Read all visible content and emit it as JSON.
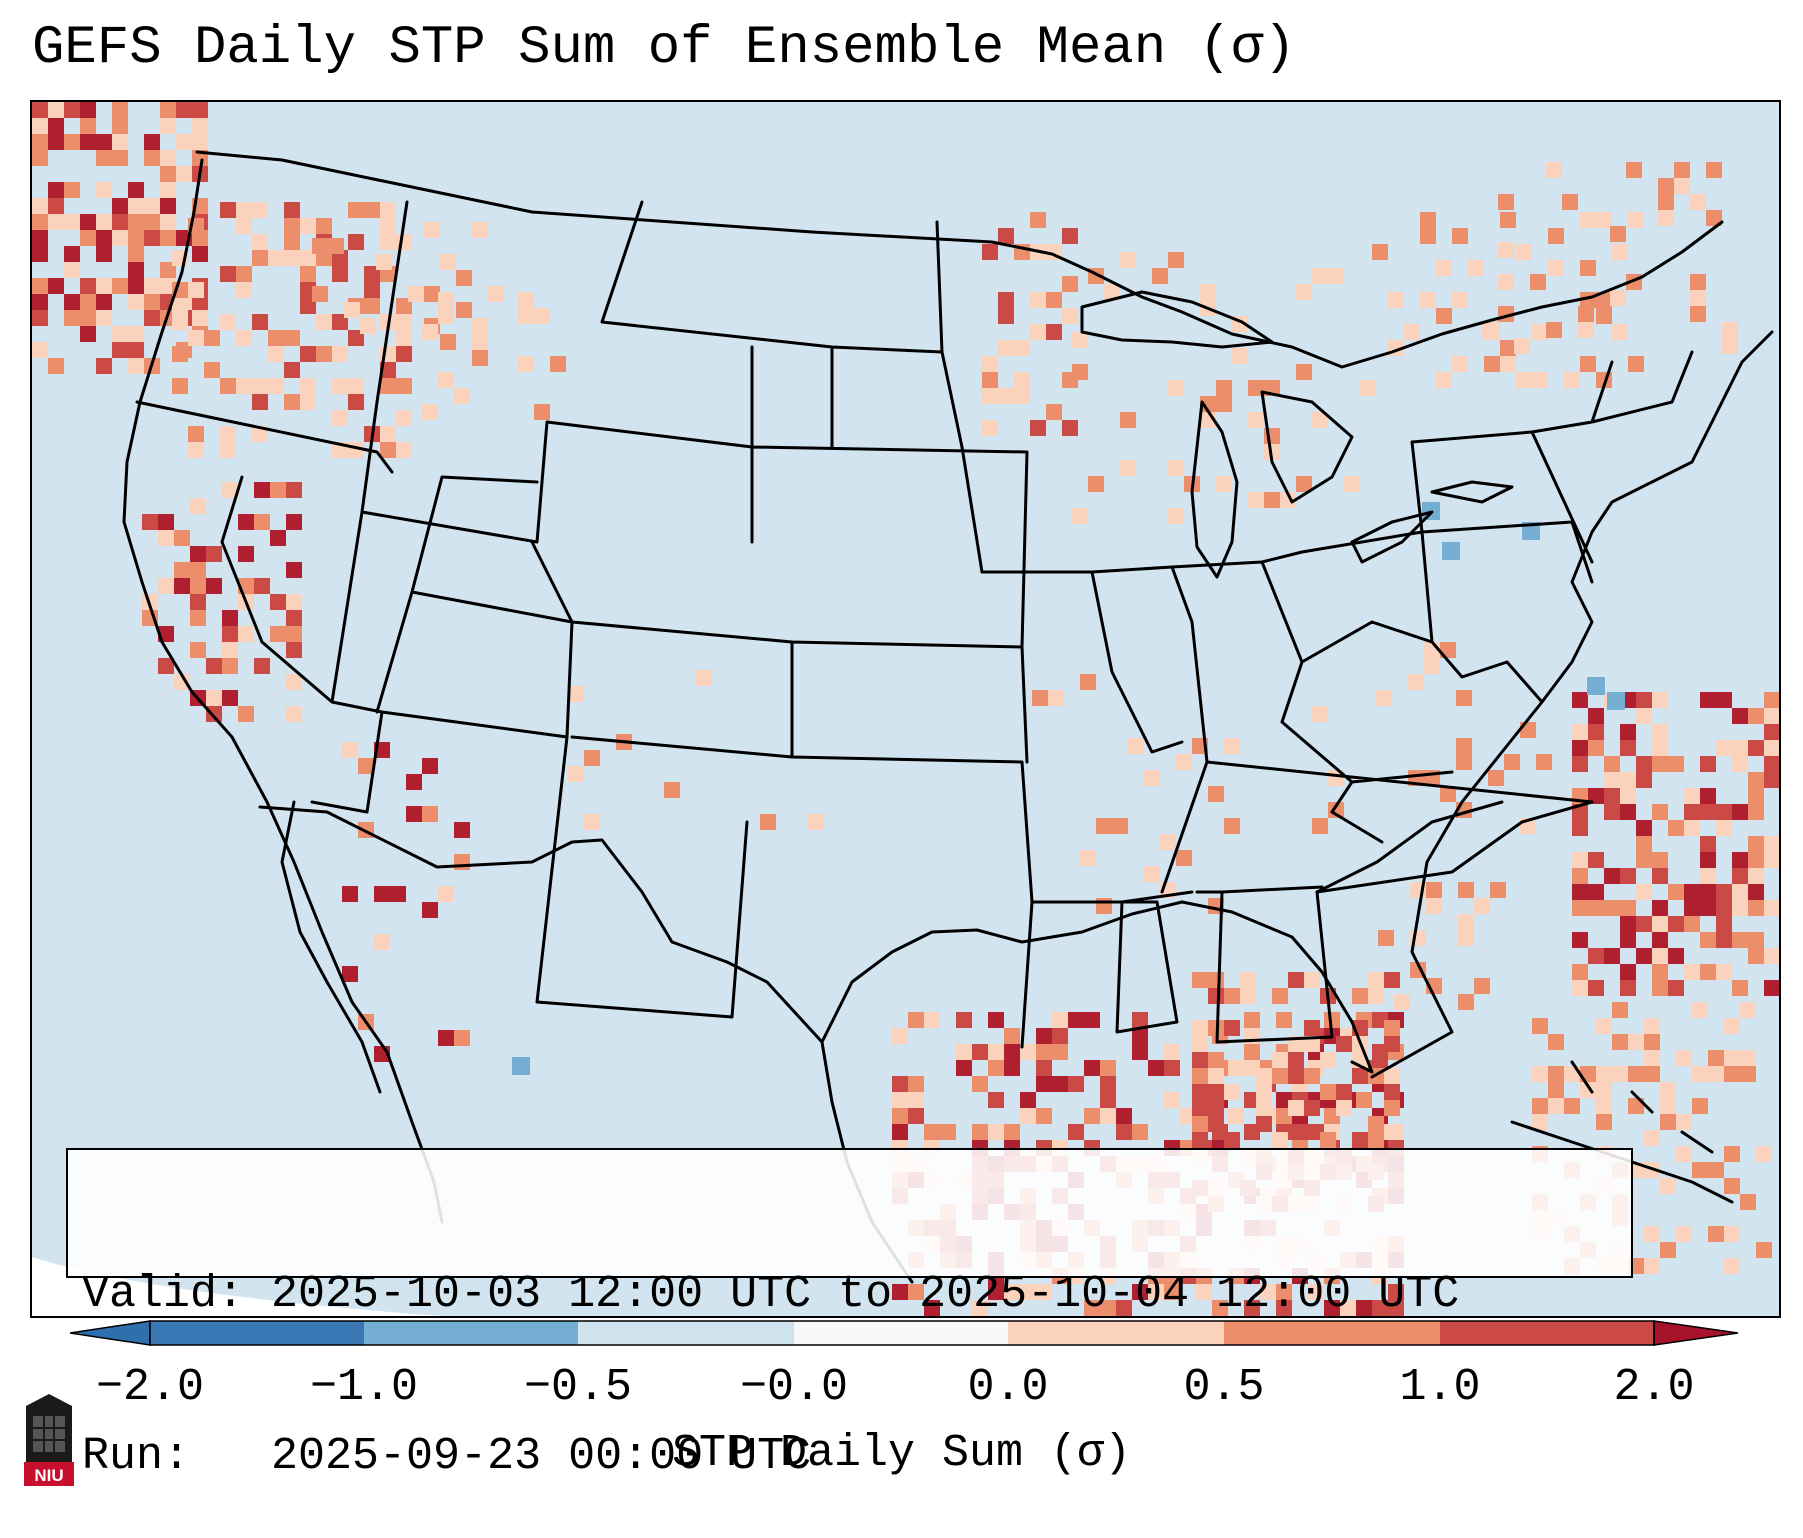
{
  "title": "GEFS Daily STP Sum of Ensemble Mean (σ)",
  "info": {
    "valid": "Valid: 2025-10-03 12:00 UTC to 2025-10-04 12:00 UTC",
    "run": "Run:   2025-09-23 00:00 UTC"
  },
  "colorbar": {
    "label": "STP Daily Sum (σ)",
    "ticks": [
      "−2.0",
      "−1.0",
      "−0.5",
      "−0.0",
      "0.0",
      "0.5",
      "1.0",
      "2.0"
    ],
    "colors": [
      "#3a78b5",
      "#74aed3",
      "#cfe3ef",
      "#f8f8f8",
      "#fbd3bd",
      "#ec8d6c",
      "#cc4a46",
      "#b01f2f"
    ],
    "below_color": "#2f6fae",
    "above_color": "#a8132c"
  },
  "map": {
    "background_color": "#d2e4ef",
    "outside_color": "#ffffff",
    "border_color": "#000000"
  },
  "logo": {
    "text": "NIU",
    "icon": "niu-logo-icon"
  }
}
